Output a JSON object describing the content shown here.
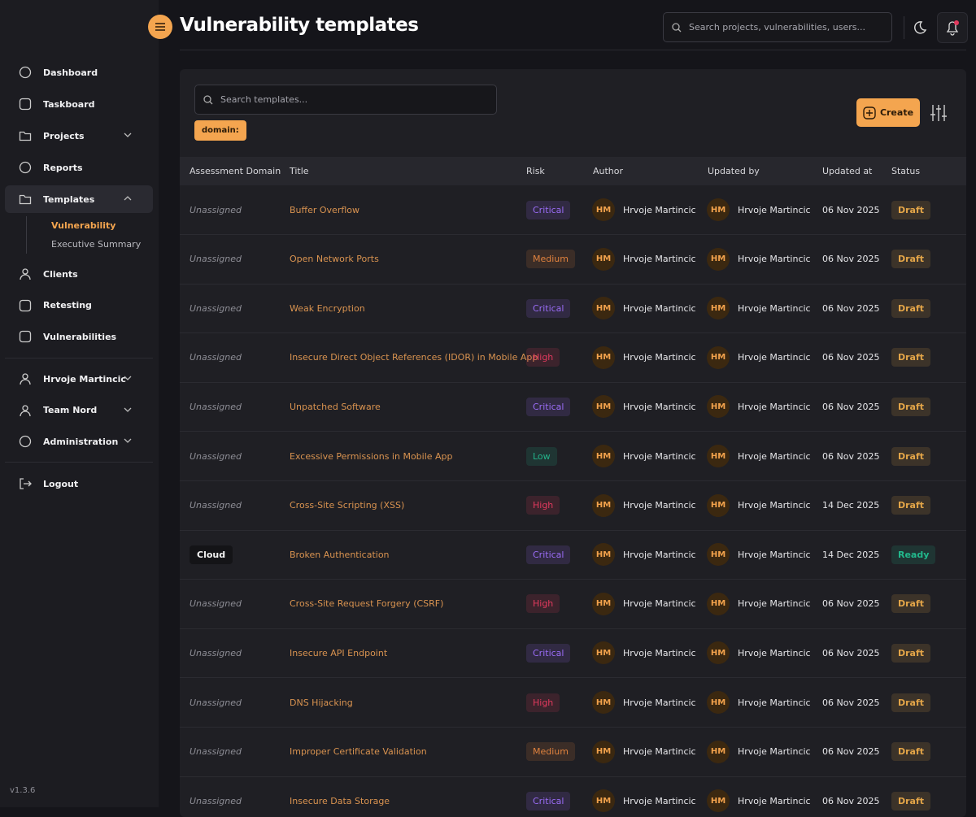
{
  "sidebar": {
    "nav": [
      "Dashboard",
      "Taskboard",
      "Projects",
      "Reports",
      "Templates"
    ],
    "templates_sub": [
      "Vulnerability",
      "Executive Summary"
    ],
    "nav_more": [
      "Clients",
      "Retesting",
      "Vulnerabilities"
    ],
    "account": [
      "Hrvoje Martincic",
      "Team Nord",
      "Administration"
    ],
    "logout": "Logout",
    "version": "v1.3.6"
  },
  "header": {
    "title": "Vulnerability templates",
    "search_placeholder": "Search projects, vulnerabilities, users..."
  },
  "toolbar": {
    "search_placeholder": "Search templates...",
    "filter_chip": "domain:",
    "create": "Create"
  },
  "table": {
    "columns": [
      "Assessment Domain",
      "Title",
      "Risk",
      "Author",
      "Updated by",
      "Updated at",
      "Status"
    ],
    "risk_colors": {
      "Critical": "#9a6cf5",
      "Medium": "#e0823e",
      "High": "#e23a5e",
      "Low": "#23b48a"
    },
    "status_colors": {
      "Draft": "#e3a548",
      "Ready": "#22b88c"
    },
    "rows": [
      {
        "domain": {
          "text": "Unassigned",
          "assigned": false
        },
        "title": "Buffer Overflow",
        "risk": "Critical",
        "author_initials": "HM",
        "author": "Hrvoje Martincic",
        "updated_by_initials": "HM",
        "updated_by": "Hrvoje Martincic",
        "updated_at": "06 Nov 2025",
        "status": "Draft"
      },
      {
        "domain": {
          "text": "Unassigned",
          "assigned": false
        },
        "title": "Open Network Ports",
        "risk": "Medium",
        "author_initials": "HM",
        "author": "Hrvoje Martincic",
        "updated_by_initials": "HM",
        "updated_by": "Hrvoje Martincic",
        "updated_at": "06 Nov 2025",
        "status": "Draft"
      },
      {
        "domain": {
          "text": "Unassigned",
          "assigned": false
        },
        "title": "Weak Encryption",
        "risk": "Critical",
        "author_initials": "HM",
        "author": "Hrvoje Martincic",
        "updated_by_initials": "HM",
        "updated_by": "Hrvoje Martincic",
        "updated_at": "06 Nov 2025",
        "status": "Draft"
      },
      {
        "domain": {
          "text": "Unassigned",
          "assigned": false
        },
        "title": "Insecure Direct Object References (IDOR) in Mobile App",
        "risk": "High",
        "author_initials": "HM",
        "author": "Hrvoje Martincic",
        "updated_by_initials": "HM",
        "updated_by": "Hrvoje Martincic",
        "updated_at": "06 Nov 2025",
        "status": "Draft"
      },
      {
        "domain": {
          "text": "Unassigned",
          "assigned": false
        },
        "title": "Unpatched Software",
        "risk": "Critical",
        "author_initials": "HM",
        "author": "Hrvoje Martincic",
        "updated_by_initials": "HM",
        "updated_by": "Hrvoje Martincic",
        "updated_at": "06 Nov 2025",
        "status": "Draft"
      },
      {
        "domain": {
          "text": "Unassigned",
          "assigned": false
        },
        "title": "Excessive Permissions in Mobile App",
        "risk": "Low",
        "author_initials": "HM",
        "author": "Hrvoje Martincic",
        "updated_by_initials": "HM",
        "updated_by": "Hrvoje Martincic",
        "updated_at": "06 Nov 2025",
        "status": "Draft"
      },
      {
        "domain": {
          "text": "Unassigned",
          "assigned": false
        },
        "title": "Cross-Site Scripting (XSS)",
        "risk": "High",
        "author_initials": "HM",
        "author": "Hrvoje Martincic",
        "updated_by_initials": "HM",
        "updated_by": "Hrvoje Martincic",
        "updated_at": "14 Dec 2025",
        "status": "Draft"
      },
      {
        "domain": {
          "text": "Cloud",
          "assigned": true
        },
        "title": "Broken Authentication",
        "risk": "Critical",
        "author_initials": "HM",
        "author": "Hrvoje Martincic",
        "updated_by_initials": "HM",
        "updated_by": "Hrvoje Martincic",
        "updated_at": "14 Dec 2025",
        "status": "Ready"
      },
      {
        "domain": {
          "text": "Unassigned",
          "assigned": false
        },
        "title": "Cross-Site Request Forgery (CSRF)",
        "risk": "High",
        "author_initials": "HM",
        "author": "Hrvoje Martincic",
        "updated_by_initials": "HM",
        "updated_by": "Hrvoje Martincic",
        "updated_at": "06 Nov 2025",
        "status": "Draft"
      },
      {
        "domain": {
          "text": "Unassigned",
          "assigned": false
        },
        "title": "Insecure API Endpoint",
        "risk": "Critical",
        "author_initials": "HM",
        "author": "Hrvoje Martincic",
        "updated_by_initials": "HM",
        "updated_by": "Hrvoje Martincic",
        "updated_at": "06 Nov 2025",
        "status": "Draft"
      },
      {
        "domain": {
          "text": "Unassigned",
          "assigned": false
        },
        "title": "DNS Hijacking",
        "risk": "High",
        "author_initials": "HM",
        "author": "Hrvoje Martincic",
        "updated_by_initials": "HM",
        "updated_by": "Hrvoje Martincic",
        "updated_at": "06 Nov 2025",
        "status": "Draft"
      },
      {
        "domain": {
          "text": "Unassigned",
          "assigned": false
        },
        "title": "Improper Certificate Validation",
        "risk": "Medium",
        "author_initials": "HM",
        "author": "Hrvoje Martincic",
        "updated_by_initials": "HM",
        "updated_by": "Hrvoje Martincic",
        "updated_at": "06 Nov 2025",
        "status": "Draft"
      },
      {
        "domain": {
          "text": "Unassigned",
          "assigned": false
        },
        "title": "Insecure Data Storage",
        "risk": "Critical",
        "author_initials": "HM",
        "author": "Hrvoje Martincic",
        "updated_by_initials": "HM",
        "updated_by": "Hrvoje Martincic",
        "updated_at": "06 Nov 2025",
        "status": "Draft"
      }
    ]
  }
}
